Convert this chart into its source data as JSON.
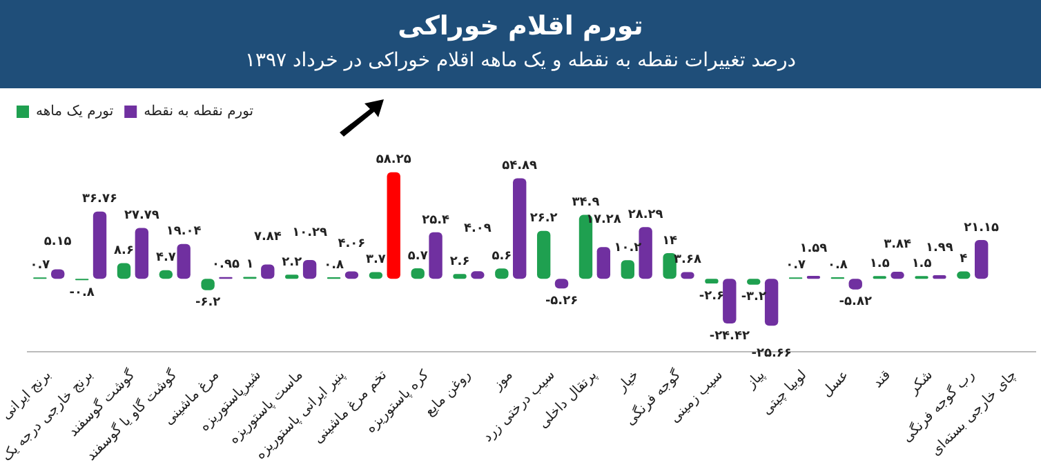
{
  "chart_data": {
    "type": "bar",
    "title": "تورم اقلام خوراکی",
    "subtitle": "درصد تغییرات نقطه به نقطه و یک ماهه اقلام خوراکی در خرداد ۱۳۹۷",
    "categories": [
      "برنج ایرانی",
      "برنج خارجی درجه یک",
      "گوشت گوسفند",
      "گوشت گاو یا گوسفند",
      "مرغ ماشینی",
      "شیرپاستوریزه",
      "ماست پاستوریزه",
      "پنیر ایرانی پاستوریزه",
      "تخم مرغ ماشینی",
      "کره پاستوریزه",
      "روغن مایع",
      "موز",
      "سیب درختی زرد",
      "پرتقال داخلی",
      "خیار",
      "گوجه فرنگی",
      "سیب زمینی",
      "پیاز",
      "لوبیا چیتی",
      "عسل",
      "قند",
      "شکر",
      "رب گوجه فرنگی",
      "چای خارجی بسته‌ای"
    ],
    "series": [
      {
        "name": "تورم یک ماهه",
        "color": "#1fa050",
        "values": [
          0.7,
          -0.8,
          8.6,
          4.7,
          -6.2,
          1,
          2.2,
          0.8,
          3.7,
          5.7,
          2.6,
          5.6,
          26.2,
          34.9,
          10.2,
          14,
          -2.6,
          -3.2,
          0.7,
          0.8,
          1.5,
          1.5,
          4,
          null
        ],
        "value_labels": [
          "۰.۷",
          "-۰.۸",
          "۸.۶",
          "۴.۷",
          "-۶.۲",
          "۱",
          "۲.۲",
          "۰.۸",
          "۳.۷",
          "۵.۷",
          "۲.۶",
          "۵.۶",
          "۲۶.۲",
          "۳۴.۹",
          "۱۰.۲",
          "۱۴",
          "-۲.۶",
          "-۳.۲",
          "۰.۷",
          "۰.۸",
          "۱.۵",
          "۱.۵",
          "۴",
          null
        ]
      },
      {
        "name": "تورم نقطه به نقطه",
        "color": "#7030a0",
        "colors": [
          null,
          null,
          null,
          null,
          null,
          null,
          null,
          null,
          "#ff0000",
          null,
          null,
          null,
          null,
          null,
          null,
          null,
          null,
          null,
          null,
          null,
          null,
          null,
          null,
          null
        ],
        "values": [
          5.15,
          36.76,
          27.79,
          19.04,
          0.95,
          7.84,
          10.29,
          4.06,
          58.25,
          25.4,
          4.09,
          54.89,
          -5.26,
          17.28,
          28.29,
          3.68,
          -24.42,
          -25.66,
          1.59,
          -5.82,
          3.84,
          1.99,
          21.15,
          null
        ],
        "value_labels": [
          "۵.۱۵",
          "۳۶.۷۶",
          "۲۷.۷۹",
          "۱۹.۰۴",
          "۰.۹۵",
          "۷.۸۴",
          "۱۰.۲۹",
          "۴.۰۶",
          "۵۸.۲۵",
          "۲۵.۴",
          "۴.۰۹",
          "۵۴.۸۹",
          "-۵.۲۶",
          "۱۷.۲۸",
          "۲۸.۲۹",
          "۳.۶۸",
          "-۲۴.۴۲",
          "-۲۵.۶۶",
          "۱.۵۹",
          "-۵.۸۲",
          "۳.۸۴",
          "۱.۹۹",
          "۲۱.۱۵",
          null
        ]
      }
    ],
    "legend": "top left",
    "grid": false,
    "tick_labels": "x"
  }
}
